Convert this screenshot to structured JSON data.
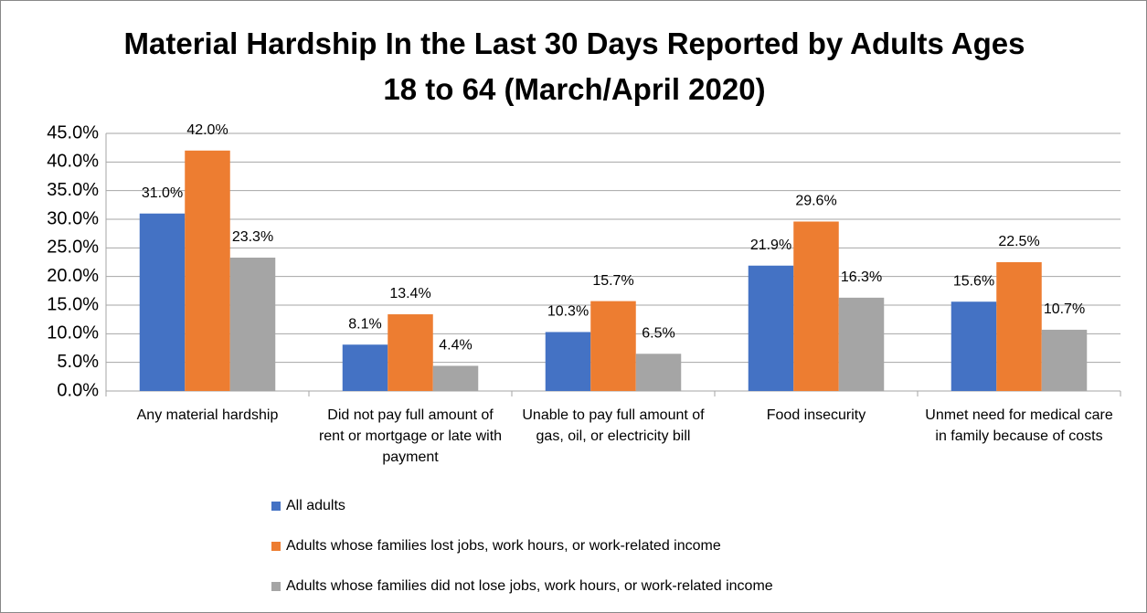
{
  "chart_data": {
    "type": "bar",
    "title": "Material Hardship In the Last 30 Days Reported by Adults Ages 18 to 64 (March/April 2020)",
    "categories": [
      "Any material hardship",
      "Did not pay full amount of rent or mortgage or late with payment",
      "Unable to pay full amount of gas, oil, or electricity bill",
      "Food insecurity",
      "Unmet need for medical care in family because of costs"
    ],
    "series": [
      {
        "name": "All adults",
        "color": "#4472c4",
        "values": [
          31.0,
          8.1,
          10.3,
          21.9,
          15.6
        ],
        "value_labels": [
          "31.0%",
          "8.1%",
          "10.3%",
          "21.9%",
          "15.6%"
        ]
      },
      {
        "name": "Adults whose families lost jobs, work hours, or work-related income",
        "color": "#ed7d31",
        "values": [
          42.0,
          13.4,
          15.7,
          29.6,
          22.5
        ],
        "value_labels": [
          "42.0%",
          "13.4%",
          "15.7%",
          "29.6%",
          "22.5%"
        ]
      },
      {
        "name": "Adults whose families did not lose jobs, work hours, or work-related income",
        "color": "#a5a5a5",
        "values": [
          23.3,
          4.4,
          6.5,
          16.3,
          10.7
        ],
        "value_labels": [
          "23.3%",
          "4.4%",
          "6.5%",
          "16.3%",
          "10.7%"
        ]
      }
    ],
    "ylim": [
      0,
      45
    ],
    "yticks": [
      {
        "value": 0,
        "label": "0.0%"
      },
      {
        "value": 5,
        "label": "5.0%"
      },
      {
        "value": 10,
        "label": "10.0%"
      },
      {
        "value": 15,
        "label": "15.0%"
      },
      {
        "value": 20,
        "label": "20.0%"
      },
      {
        "value": 25,
        "label": "25.0%"
      },
      {
        "value": 30,
        "label": "30.0%"
      },
      {
        "value": 35,
        "label": "35.0%"
      },
      {
        "value": 40,
        "label": "40.0%"
      },
      {
        "value": 45,
        "label": "45.0%"
      }
    ],
    "grid": true,
    "legend": "bottom"
  }
}
